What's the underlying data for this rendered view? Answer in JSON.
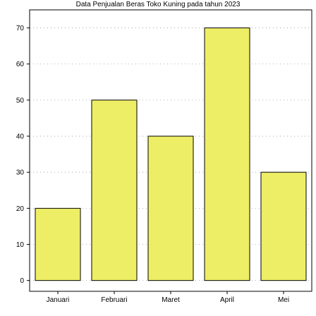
{
  "chart_data": {
    "type": "bar",
    "title": "Data Penjualan Beras Toko Kuning pada tahun 2023",
    "xlabel": "",
    "ylabel": "",
    "categories": [
      "Januari",
      "Februari",
      "Maret",
      "April",
      "Mei"
    ],
    "values": [
      20,
      50,
      40,
      70,
      30
    ],
    "yticks": [
      0,
      10,
      20,
      30,
      40,
      50,
      60,
      70
    ],
    "ylim": [
      -3,
      75
    ],
    "grid": true,
    "legend": "none",
    "colors": {
      "bar_fill": "#eeee66",
      "bar_stroke": "#000000",
      "grid": "#999999",
      "axis": "#000000"
    }
  }
}
